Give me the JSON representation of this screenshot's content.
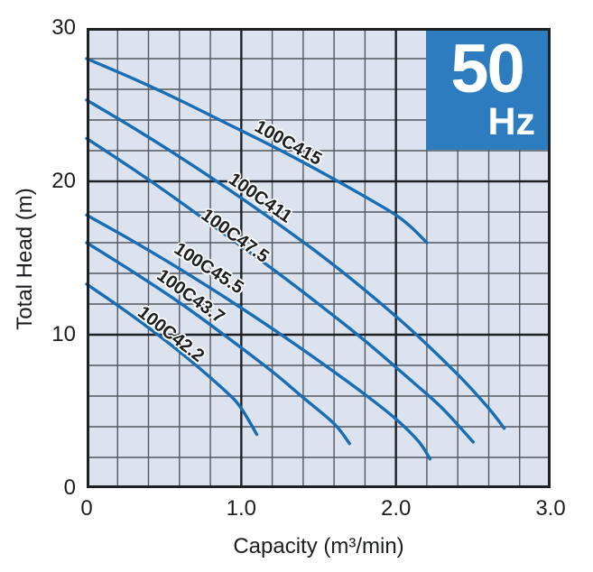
{
  "badge": {
    "value": "50",
    "unit": "Hz",
    "bg_color": "#2d7cc0",
    "text_color": "#ffffff"
  },
  "chart_data": {
    "type": "line",
    "title": "",
    "xlabel": "Capacity (m³/min)",
    "ylabel": "Total Head (m)",
    "xlim": [
      0,
      3
    ],
    "ylim": [
      0,
      30
    ],
    "x_ticks": [
      {
        "value": 0,
        "label": "0"
      },
      {
        "value": 1,
        "label": "1.0"
      },
      {
        "value": 2,
        "label": "2.0"
      },
      {
        "value": 3,
        "label": "3.0"
      }
    ],
    "y_ticks": [
      {
        "value": 0,
        "label": "0"
      },
      {
        "value": 10,
        "label": "10"
      },
      {
        "value": 20,
        "label": "20"
      },
      {
        "value": 30,
        "label": "30"
      }
    ],
    "grid": {
      "on": true,
      "x_minor_step": 0.2,
      "y_minor_step": 2,
      "x_major": [
        1,
        2
      ],
      "y_major": [
        10,
        20
      ],
      "bg_color": "#dce3ef",
      "minor_color": "#53575e",
      "major_color": "#1d2024",
      "border_color": "#1d2024"
    },
    "curve_color": "#176db6",
    "legend_position": "inline-rotated-labels",
    "series": [
      {
        "name": "100C415",
        "label_pos": [
          1.3,
          22.5
        ],
        "label_angle": 29,
        "points": [
          [
            0,
            28
          ],
          [
            0.3,
            26.7
          ],
          [
            0.6,
            25.3
          ],
          [
            0.9,
            23.8
          ],
          [
            1.2,
            22.3
          ],
          [
            1.5,
            20.7
          ],
          [
            1.8,
            19.0
          ],
          [
            2.0,
            17.8
          ],
          [
            2.1,
            17.0
          ],
          [
            2.2,
            16.0
          ]
        ]
      },
      {
        "name": "100C411",
        "label_pos": [
          1.12,
          18.9
        ],
        "label_angle": 35,
        "points": [
          [
            0,
            25.3
          ],
          [
            0.3,
            23.5
          ],
          [
            0.6,
            21.6
          ],
          [
            0.9,
            19.6
          ],
          [
            1.2,
            17.5
          ],
          [
            1.5,
            15.3
          ],
          [
            1.8,
            12.9
          ],
          [
            2.1,
            10.3
          ],
          [
            2.4,
            7.4
          ],
          [
            2.6,
            5.2
          ],
          [
            2.7,
            3.9
          ]
        ]
      },
      {
        "name": "100C47.5",
        "label_pos": [
          0.96,
          16.4
        ],
        "label_angle": 36,
        "points": [
          [
            0,
            22.8
          ],
          [
            0.3,
            20.8
          ],
          [
            0.6,
            18.7
          ],
          [
            0.9,
            16.5
          ],
          [
            1.2,
            14.3
          ],
          [
            1.5,
            12.0
          ],
          [
            1.8,
            9.6
          ],
          [
            2.1,
            7.0
          ],
          [
            2.3,
            5.2
          ],
          [
            2.5,
            3.0
          ]
        ]
      },
      {
        "name": "100C45.5",
        "label_pos": [
          0.79,
          14.3
        ],
        "label_angle": 33,
        "points": [
          [
            0,
            17.8
          ],
          [
            0.3,
            16.1
          ],
          [
            0.6,
            14.3
          ],
          [
            0.9,
            12.4
          ],
          [
            1.2,
            10.4
          ],
          [
            1.5,
            8.3
          ],
          [
            1.8,
            6.1
          ],
          [
            2.0,
            4.5
          ],
          [
            2.15,
            3.0
          ],
          [
            2.22,
            1.9
          ]
        ]
      },
      {
        "name": "100C43.7",
        "label_pos": [
          0.67,
          12.5
        ],
        "label_angle": 36,
        "points": [
          [
            0,
            16.0
          ],
          [
            0.3,
            14.1
          ],
          [
            0.6,
            12.1
          ],
          [
            0.9,
            9.9
          ],
          [
            1.2,
            7.6
          ],
          [
            1.4,
            5.9
          ],
          [
            1.6,
            4.2
          ],
          [
            1.7,
            2.9
          ]
        ]
      },
      {
        "name": "100C42.2",
        "label_pos": [
          0.54,
          10.0
        ],
        "label_angle": 38,
        "points": [
          [
            0,
            13.3
          ],
          [
            0.3,
            11.2
          ],
          [
            0.6,
            8.9
          ],
          [
            0.9,
            6.3
          ],
          [
            1.0,
            5.2
          ],
          [
            1.1,
            3.5
          ]
        ]
      }
    ]
  }
}
